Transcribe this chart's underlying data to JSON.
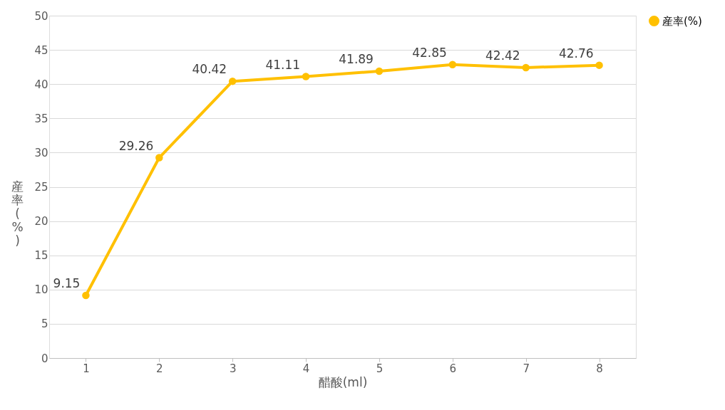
{
  "chart_data": {
    "type": "line",
    "xlabel": "醋酸(ml)",
    "ylabel": "産率(%)",
    "categories": [
      "1",
      "2",
      "3",
      "4",
      "5",
      "6",
      "7",
      "8"
    ],
    "series": [
      {
        "name": "産率(%)",
        "color": "#ffc000",
        "values": [
          9.15,
          29.26,
          40.42,
          41.11,
          41.89,
          42.85,
          42.42,
          42.76
        ]
      }
    ],
    "ylim": [
      0,
      50
    ],
    "yticks": [
      0,
      5,
      10,
      15,
      20,
      25,
      30,
      35,
      40,
      45,
      50
    ],
    "grid": "y",
    "legend": "right",
    "marker": "circle",
    "data_labels": true
  }
}
